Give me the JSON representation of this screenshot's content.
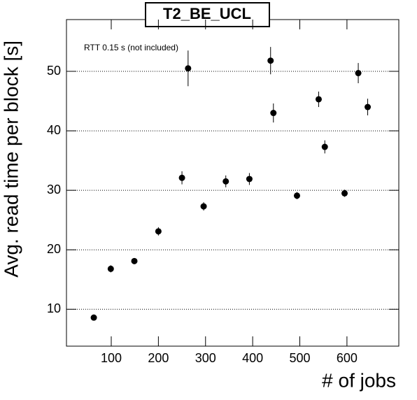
{
  "chart_data": {
    "type": "scatter",
    "title": "T2_BE_UCL",
    "annotation": "RTT 0.15 s (not included)",
    "x_label": "# of jobs",
    "y_label": "Avg. read time per block [s]",
    "x": [
      63,
      99,
      149,
      200,
      250,
      263,
      296,
      343,
      393,
      438,
      444,
      494,
      540,
      553,
      595,
      624,
      644
    ],
    "values": [
      8.6,
      16.8,
      18.1,
      23.1,
      32.1,
      50.5,
      27.3,
      31.5,
      31.9,
      51.8,
      43.0,
      29.1,
      45.3,
      37.3,
      29.5,
      49.7,
      44.0
    ],
    "errors": [
      0.3,
      0.6,
      0.5,
      0.7,
      1.1,
      3.0,
      0.7,
      1.0,
      1.0,
      2.3,
      1.6,
      0.6,
      1.3,
      1.1,
      0.6,
      1.7,
      1.4
    ],
    "color": "#000000",
    "xlim": [
      5,
      710
    ],
    "xticks": [
      100,
      200,
      300,
      400,
      500,
      600
    ],
    "ylim": [
      3.8,
      58.7
    ],
    "yticks": [
      10,
      20,
      30,
      40,
      50
    ],
    "grid": true
  }
}
